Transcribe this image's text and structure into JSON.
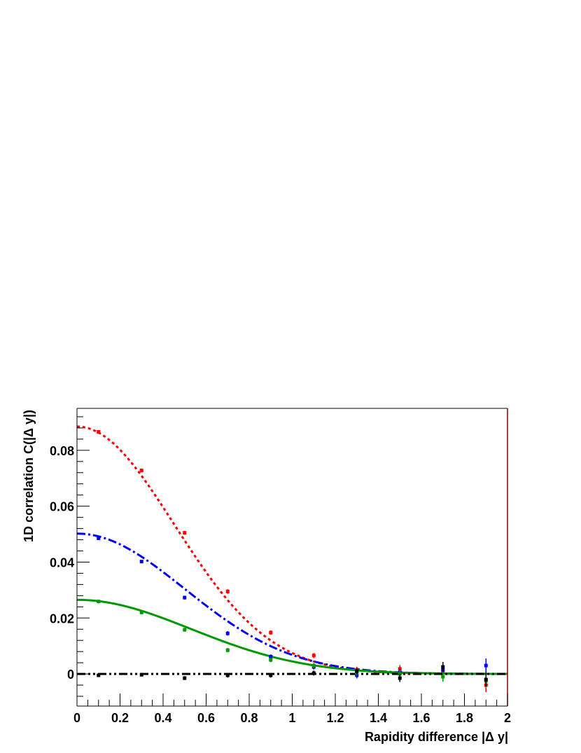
{
  "chart_data": {
    "type": "scatter",
    "title": "",
    "xlabel": "Rapidity difference |Δ y|",
    "ylabel": "1D correlation C(|Δ y|)",
    "xlim": [
      0,
      2
    ],
    "ylim": [
      -0.0115,
      0.095
    ],
    "x_ticks": [
      "0",
      "0.2",
      "0.4",
      "0.6",
      "0.8",
      "1",
      "1.2",
      "1.4",
      "1.6",
      "1.8",
      "2"
    ],
    "y_ticks": [
      "0",
      "0.02",
      "0.04",
      "0.06",
      "0.08"
    ],
    "grid": false,
    "legend": "none",
    "series": [
      {
        "color": "#ff0000",
        "line_style": "dotted",
        "fit_amplitude": 0.0885,
        "fit_sigma": 0.45,
        "points": [
          {
            "x": 0.1,
            "y": 0.0866,
            "err": 0.0006
          },
          {
            "x": 0.3,
            "y": 0.0728,
            "err": 0.0007
          },
          {
            "x": 0.5,
            "y": 0.0505,
            "err": 0.0007
          },
          {
            "x": 0.7,
            "y": 0.0295,
            "err": 0.0008
          },
          {
            "x": 0.9,
            "y": 0.0148,
            "err": 0.0008
          },
          {
            "x": 1.1,
            "y": 0.0066,
            "err": 0.0009
          },
          {
            "x": 1.3,
            "y": 0.0015,
            "err": 0.0011
          },
          {
            "x": 1.5,
            "y": 0.0018,
            "err": 0.0014
          },
          {
            "x": 1.7,
            "y": 0.001,
            "err": 0.0018
          },
          {
            "x": 1.9,
            "y": -0.004,
            "err": 0.0025
          }
        ]
      },
      {
        "color": "#0000ff",
        "line_style": "dash-dot",
        "fit_amplitude": 0.0502,
        "fit_sigma": 0.5,
        "points": [
          {
            "x": 0.1,
            "y": 0.0485,
            "err": 0.0006
          },
          {
            "x": 0.3,
            "y": 0.0402,
            "err": 0.0006
          },
          {
            "x": 0.5,
            "y": 0.0273,
            "err": 0.0007
          },
          {
            "x": 0.7,
            "y": 0.0145,
            "err": 0.0008
          },
          {
            "x": 0.9,
            "y": 0.0062,
            "err": 0.0008
          },
          {
            "x": 1.1,
            "y": 0.0025,
            "err": 0.0009
          },
          {
            "x": 1.3,
            "y": -0.0005,
            "err": 0.0011
          },
          {
            "x": 1.5,
            "y": 0.0005,
            "err": 0.0014
          },
          {
            "x": 1.7,
            "y": 0.0015,
            "err": 0.0018
          },
          {
            "x": 1.9,
            "y": 0.003,
            "err": 0.0025
          }
        ]
      },
      {
        "color": "#009900",
        "line_style": "solid",
        "fit_amplitude": 0.0265,
        "fit_sigma": 0.53,
        "points": [
          {
            "x": 0.1,
            "y": 0.0259,
            "err": 0.0006
          },
          {
            "x": 0.3,
            "y": 0.022,
            "err": 0.0006
          },
          {
            "x": 0.5,
            "y": 0.0158,
            "err": 0.0007
          },
          {
            "x": 0.7,
            "y": 0.0085,
            "err": 0.0008
          },
          {
            "x": 0.9,
            "y": 0.005,
            "err": 0.0008
          },
          {
            "x": 1.1,
            "y": 0.003,
            "err": 0.0009
          },
          {
            "x": 1.3,
            "y": 0.0005,
            "err": 0.0011
          },
          {
            "x": 1.5,
            "y": 0.0,
            "err": 0.0014
          },
          {
            "x": 1.7,
            "y": -0.001,
            "err": 0.0018
          },
          {
            "x": 1.9,
            "y": -0.0025,
            "err": 0.0025
          }
        ]
      },
      {
        "color": "#000000",
        "line_style": "dash-dot-dot",
        "fit_amplitude": 0.0,
        "fit_sigma": 0.5,
        "points": [
          {
            "x": 0.1,
            "y": -0.0005,
            "err": 0.0006
          },
          {
            "x": 0.3,
            "y": -0.0003,
            "err": 0.0006
          },
          {
            "x": 0.5,
            "y": -0.0015,
            "err": 0.0007
          },
          {
            "x": 0.7,
            "y": -0.0005,
            "err": 0.0008
          },
          {
            "x": 0.9,
            "y": -0.0005,
            "err": 0.0008
          },
          {
            "x": 1.1,
            "y": 0.0003,
            "err": 0.0009
          },
          {
            "x": 1.3,
            "y": 0.001,
            "err": 0.0011
          },
          {
            "x": 1.5,
            "y": -0.0015,
            "err": 0.0014
          },
          {
            "x": 1.7,
            "y": 0.0025,
            "err": 0.0018
          },
          {
            "x": 1.9,
            "y": -0.002,
            "err": 0.0025
          }
        ]
      }
    ]
  }
}
